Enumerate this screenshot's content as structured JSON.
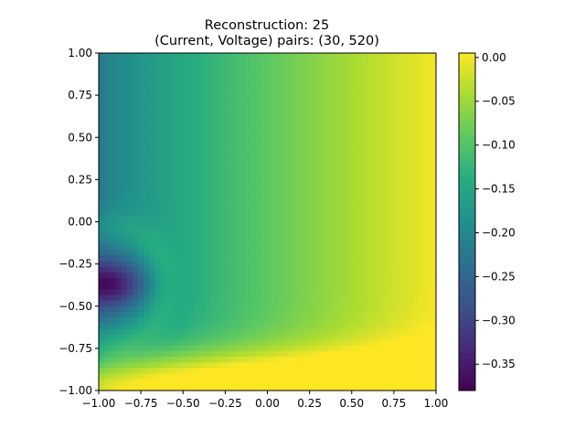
{
  "chart_data": {
    "type": "heatmap",
    "title_line1": "Reconstruction: 25",
    "title_line2": "(Current, Voltage) pairs: (30, 520)",
    "xlabel": "",
    "ylabel": "",
    "xlim": [
      -1.0,
      1.0
    ],
    "ylim": [
      -1.0,
      1.0
    ],
    "x_ticks": [
      "-1.00",
      "-0.75",
      "-0.50",
      "-0.25",
      "0.00",
      "0.25",
      "0.50",
      "0.75",
      "1.00"
    ],
    "y_ticks": [
      "1.00",
      "0.75",
      "0.50",
      "0.25",
      "0.00",
      "-0.25",
      "-0.50",
      "-0.75",
      "-1.00"
    ],
    "colormap": "viridis",
    "colorbar": {
      "min": -0.38,
      "max": 0.005,
      "tick_values": [
        0.0,
        -0.05,
        -0.1,
        -0.15,
        -0.2,
        -0.25,
        -0.3,
        -0.35
      ],
      "tick_labels": [
        "0.00",
        "−0.05",
        "−0.10",
        "−0.15",
        "−0.20",
        "−0.25",
        "−0.30",
        "−0.35"
      ]
    },
    "grid": false,
    "field_features": {
      "minimum": {
        "x": -0.93,
        "y": -0.37,
        "value": -0.38
      },
      "maximum_region": "right edge, x > 0.6",
      "left_edge_top": -0.19,
      "left_edge_bottom": -0.02
    }
  }
}
